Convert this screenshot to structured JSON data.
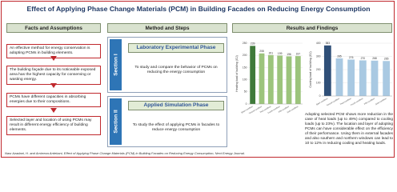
{
  "title": "Effect of Applying Phase Change Materials (PCM) in Building Facades on Reducing Energy Consumption",
  "facts": {
    "heading": "Facts and Assumptions",
    "items": [
      "An effective method for energy conservation is adopting PCMs in building elements.",
      "The building façade due to its noticeable exposed area has the highest capacity for conserving or wasting energy.",
      "PCMs have different capacities in absorbing energies due to their compositions.",
      "Selected layer and location of using PCMs may result in different energy efficiency of building elements."
    ]
  },
  "method": {
    "heading": "Method and Steps",
    "sections": [
      {
        "label": "Section I",
        "phase": "Laboratory Experimental Phase",
        "text": "To study and compare the behavior of PCMs on reducing the energy consumption"
      },
      {
        "label": "Section II",
        "phase": "Applied Simulation Phase",
        "text": "To study the effect of applying PCMs in facades to reduce energy consumption"
      }
    ]
  },
  "results": {
    "heading": "Results and Findings",
    "text": "Adopting selected PCM shows more reduction in the case of heat loads (up to 49%) compared to cooling loads (up to 23%). The location and layer of adopting PCMs can have considerable effect on the efficiency of their performance. Using them in external facades and also southern and northern windows can lead to 10 to 12% in reducing cooling and heating loads."
  },
  "chart_data": [
    {
      "type": "bar",
      "y_label": "Heating load of building (GJ)",
      "categories": [
        "Basic condition",
        "Second condition",
        "Third condition",
        "Fourth condition",
        "Fifth condition",
        "Sixth condition"
      ],
      "values": [
        239,
        208,
        201,
        199,
        196,
        197
      ],
      "colors": [
        "#3f7a3a",
        "#9cc47c",
        "#9cc47c",
        "#9cc47c",
        "#9cc47c",
        "#9cc47c"
      ],
      "ylim": [
        0,
        250
      ],
      "yticks": [
        0,
        50,
        100,
        150,
        200,
        250
      ]
    },
    {
      "type": "bar",
      "y_label": "Cooling load of building (GJ)",
      "categories": [
        "Basic condition",
        "Second condition",
        "Third condition",
        "Fourth condition",
        "Fifth condition",
        "Sixth condition"
      ],
      "values": [
        383,
        285,
        276,
        270,
        268,
        265
      ],
      "colors": [
        "#2f4f78",
        "#a9c9e2",
        "#a9c9e2",
        "#a9c9e2",
        "#a9c9e2",
        "#a9c9e2"
      ],
      "ylim": [
        0,
        400
      ],
      "yticks": [
        0,
        100,
        200,
        300,
        400
      ]
    }
  ],
  "citation": "Nasr Azadani, H. and Amirreza Ardekani, Effect of Applying Phase Change Materials (PCM) in Building Facades on Reducing Energy Consumption, Next Energy Journal."
}
